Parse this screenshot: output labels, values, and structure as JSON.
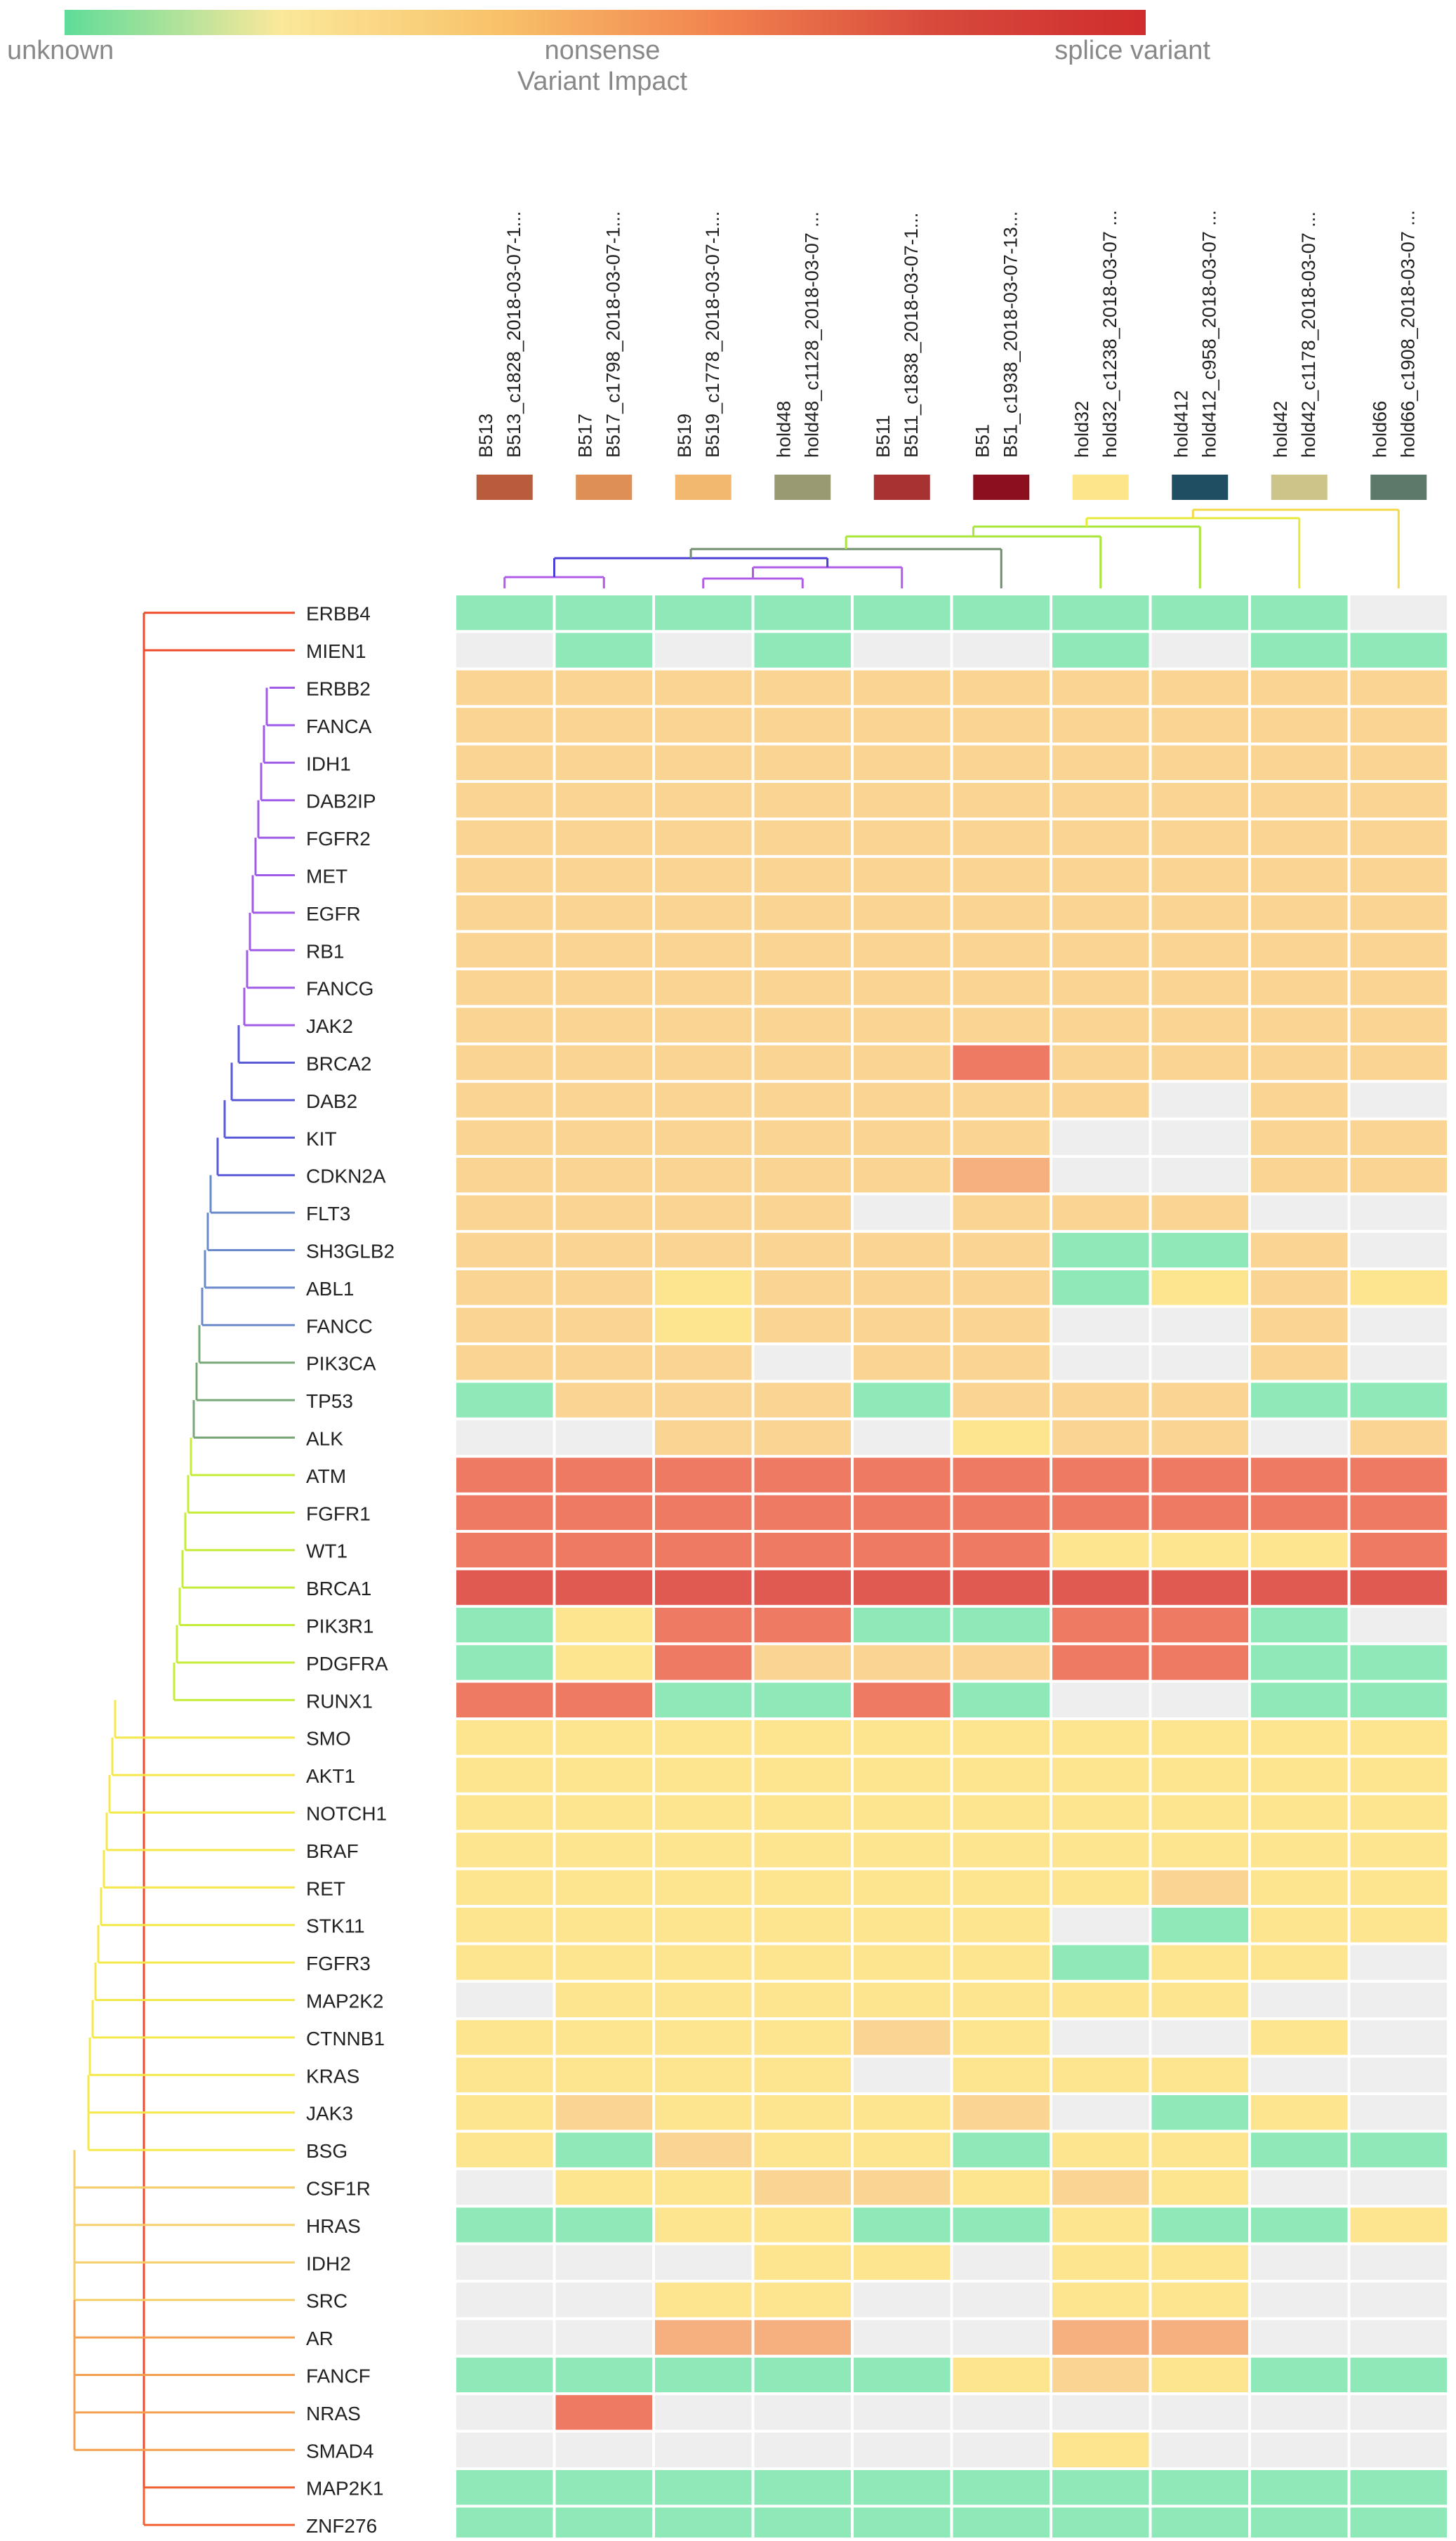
{
  "legend": {
    "title": "Variant Impact",
    "label_left": "unknown",
    "label_mid": "nonsense",
    "label_right": "splice variant",
    "gradient_colors": [
      "#5fdc9a",
      "#fbe89a",
      "#f8c26a",
      "#f2844f",
      "#d84a3c",
      "#cf2d2d"
    ]
  },
  "chart_data": {
    "type": "heatmap",
    "title": "Variant Impact",
    "color_scale": {
      "unknown": "#8fe8b8",
      "low": "#fde48e",
      "moderate": "#fad493",
      "mid-high": "#f6b080",
      "high": "#ee7a64",
      "splice variant": "#e05a52",
      "none": "#eeeeee"
    },
    "samples": [
      {
        "lines": [
          "B513",
          "B513_c1828_2018-03-07-1..."
        ],
        "color": "#b85c3c"
      },
      {
        "lines": [
          "B517",
          "B517_c1798_2018-03-07-1..."
        ],
        "color": "#dd8f55"
      },
      {
        "lines": [
          "B519",
          "B519_c1778_2018-03-07-1..."
        ],
        "color": "#f3b870"
      },
      {
        "lines": [
          "hold48",
          "hold48_c1128_2018-03-07 ..."
        ],
        "color": "#9a9a72"
      },
      {
        "lines": [
          "B511",
          "B511_c1838_2018-03-07-1..."
        ],
        "color": "#a83232"
      },
      {
        "lines": [
          "B51",
          "B51_c1938_2018-03-07-13..."
        ],
        "color": "#8b0f1e"
      },
      {
        "lines": [
          "hold32",
          "hold32_c1238_2018-03-07 ..."
        ],
        "color": "#fde68a"
      },
      {
        "lines": [
          "hold412",
          "hold412_c958_2018-03-07 ..."
        ],
        "color": "#1f4e63"
      },
      {
        "lines": [
          "hold42",
          "hold42_c1178_2018-03-07 ..."
        ],
        "color": "#cdc48a"
      },
      {
        "lines": [
          "hold66",
          "hold66_c1908_2018-03-07 ..."
        ],
        "color": "#5c7a6a"
      }
    ],
    "genes": [
      "ERBB4",
      "MIEN1",
      "ERBB2",
      "FANCA",
      "IDH1",
      "DAB2IP",
      "FGFR2",
      "MET",
      "EGFR",
      "RB1",
      "FANCG",
      "JAK2",
      "BRCA2",
      "DAB2",
      "KIT",
      "CDKN2A",
      "FLT3",
      "SH3GLB2",
      "ABL1",
      "FANCC",
      "PIK3CA",
      "TP53",
      "ALK",
      "ATM",
      "FGFR1",
      "WT1",
      "BRCA1",
      "PIK3R1",
      "PDGFRA",
      "RUNX1",
      "SMO",
      "AKT1",
      "NOTCH1",
      "BRAF",
      "RET",
      "STK11",
      "FGFR3",
      "MAP2K2",
      "CTNNB1",
      "KRAS",
      "JAK3",
      "BSG",
      "CSF1R",
      "HRAS",
      "IDH2",
      "SRC",
      "AR",
      "FANCF",
      "NRAS",
      "SMAD4",
      "MAP2K1",
      "ZNF276"
    ],
    "matrix": [
      [
        "U",
        "U",
        "U",
        "U",
        "U",
        "U",
        "U",
        "U",
        "U",
        "N"
      ],
      [
        "N",
        "U",
        "N",
        "U",
        "N",
        "N",
        "U",
        "N",
        "U",
        "U"
      ],
      [
        "M",
        "M",
        "M",
        "M",
        "M",
        "M",
        "M",
        "M",
        "M",
        "M"
      ],
      [
        "M",
        "M",
        "M",
        "M",
        "M",
        "M",
        "M",
        "M",
        "M",
        "M"
      ],
      [
        "M",
        "M",
        "M",
        "M",
        "M",
        "M",
        "M",
        "M",
        "M",
        "M"
      ],
      [
        "M",
        "M",
        "M",
        "M",
        "M",
        "M",
        "M",
        "M",
        "M",
        "M"
      ],
      [
        "M",
        "M",
        "M",
        "M",
        "M",
        "M",
        "M",
        "M",
        "M",
        "M"
      ],
      [
        "M",
        "M",
        "M",
        "M",
        "M",
        "M",
        "M",
        "M",
        "M",
        "M"
      ],
      [
        "M",
        "M",
        "M",
        "M",
        "M",
        "M",
        "M",
        "M",
        "M",
        "M"
      ],
      [
        "M",
        "M",
        "M",
        "M",
        "M",
        "M",
        "M",
        "M",
        "M",
        "M"
      ],
      [
        "M",
        "M",
        "M",
        "M",
        "M",
        "M",
        "M",
        "M",
        "M",
        "M"
      ],
      [
        "M",
        "M",
        "M",
        "M",
        "M",
        "M",
        "M",
        "M",
        "M",
        "M"
      ],
      [
        "M",
        "M",
        "M",
        "M",
        "M",
        "H",
        "M",
        "M",
        "M",
        "M"
      ],
      [
        "M",
        "M",
        "M",
        "M",
        "M",
        "M",
        "M",
        "N",
        "M",
        "N"
      ],
      [
        "M",
        "M",
        "M",
        "M",
        "M",
        "M",
        "N",
        "N",
        "M",
        "M"
      ],
      [
        "M",
        "M",
        "M",
        "M",
        "M",
        "O",
        "N",
        "N",
        "M",
        "M"
      ],
      [
        "M",
        "M",
        "M",
        "M",
        "N",
        "M",
        "M",
        "M",
        "N",
        "N"
      ],
      [
        "M",
        "M",
        "M",
        "M",
        "M",
        "M",
        "U",
        "U",
        "M",
        "N"
      ],
      [
        "M",
        "M",
        "L",
        "M",
        "M",
        "M",
        "U",
        "L",
        "M",
        "L"
      ],
      [
        "M",
        "M",
        "L",
        "M",
        "M",
        "M",
        "N",
        "N",
        "M",
        "N"
      ],
      [
        "M",
        "M",
        "M",
        "N",
        "M",
        "M",
        "N",
        "N",
        "M",
        "N"
      ],
      [
        "U",
        "M",
        "M",
        "M",
        "U",
        "M",
        "M",
        "M",
        "U",
        "U"
      ],
      [
        "N",
        "N",
        "M",
        "M",
        "N",
        "L",
        "M",
        "M",
        "N",
        "M"
      ],
      [
        "H",
        "H",
        "H",
        "H",
        "H",
        "H",
        "H",
        "H",
        "H",
        "H"
      ],
      [
        "H",
        "H",
        "H",
        "H",
        "H",
        "H",
        "H",
        "H",
        "H",
        "H"
      ],
      [
        "H",
        "H",
        "H",
        "H",
        "H",
        "H",
        "L",
        "L",
        "L",
        "H"
      ],
      [
        "S",
        "S",
        "S",
        "S",
        "S",
        "S",
        "S",
        "S",
        "S",
        "S"
      ],
      [
        "U",
        "L",
        "H",
        "H",
        "U",
        "U",
        "H",
        "H",
        "U",
        "N"
      ],
      [
        "U",
        "L",
        "H",
        "M",
        "M",
        "M",
        "H",
        "H",
        "U",
        "U"
      ],
      [
        "H",
        "H",
        "U",
        "U",
        "H",
        "U",
        "N",
        "N",
        "U",
        "U"
      ],
      [
        "L",
        "L",
        "L",
        "L",
        "L",
        "L",
        "L",
        "L",
        "L",
        "L"
      ],
      [
        "L",
        "L",
        "L",
        "L",
        "L",
        "L",
        "L",
        "L",
        "L",
        "L"
      ],
      [
        "L",
        "L",
        "L",
        "L",
        "L",
        "L",
        "L",
        "L",
        "L",
        "L"
      ],
      [
        "L",
        "L",
        "L",
        "L",
        "L",
        "L",
        "L",
        "L",
        "L",
        "L"
      ],
      [
        "L",
        "L",
        "L",
        "L",
        "L",
        "L",
        "L",
        "M",
        "L",
        "L"
      ],
      [
        "L",
        "L",
        "L",
        "L",
        "L",
        "L",
        "N",
        "U",
        "L",
        "L"
      ],
      [
        "L",
        "L",
        "L",
        "L",
        "L",
        "L",
        "U",
        "L",
        "L",
        "N"
      ],
      [
        "N",
        "L",
        "L",
        "L",
        "L",
        "L",
        "L",
        "L",
        "N",
        "N"
      ],
      [
        "L",
        "L",
        "L",
        "L",
        "M",
        "L",
        "N",
        "N",
        "L",
        "N"
      ],
      [
        "L",
        "L",
        "L",
        "L",
        "N",
        "L",
        "L",
        "L",
        "N",
        "N"
      ],
      [
        "L",
        "M",
        "L",
        "L",
        "L",
        "M",
        "N",
        "U",
        "L",
        "N"
      ],
      [
        "L",
        "U",
        "M",
        "L",
        "L",
        "U",
        "L",
        "L",
        "U",
        "U"
      ],
      [
        "N",
        "L",
        "L",
        "M",
        "M",
        "L",
        "M",
        "L",
        "N",
        "N"
      ],
      [
        "U",
        "U",
        "L",
        "L",
        "U",
        "U",
        "L",
        "U",
        "U",
        "L"
      ],
      [
        "N",
        "N",
        "N",
        "L",
        "L",
        "N",
        "L",
        "L",
        "N",
        "N"
      ],
      [
        "N",
        "N",
        "L",
        "L",
        "N",
        "N",
        "L",
        "L",
        "N",
        "N"
      ],
      [
        "N",
        "N",
        "O",
        "O",
        "N",
        "N",
        "O",
        "O",
        "N",
        "N"
      ],
      [
        "U",
        "U",
        "U",
        "U",
        "U",
        "L",
        "M",
        "L",
        "U",
        "U"
      ],
      [
        "N",
        "H",
        "N",
        "N",
        "N",
        "N",
        "N",
        "N",
        "N",
        "N"
      ],
      [
        "N",
        "N",
        "N",
        "N",
        "N",
        "N",
        "L",
        "N",
        "N",
        "N"
      ],
      [
        "U",
        "U",
        "U",
        "U",
        "U",
        "U",
        "U",
        "U",
        "U",
        "U"
      ],
      [
        "U",
        "U",
        "U",
        "U",
        "U",
        "U",
        "U",
        "U",
        "U",
        "U"
      ]
    ],
    "gene_tree_colors": [
      "#ee4b2b",
      "#a05ce8",
      "#5a5ad8",
      "#6a8acb",
      "#78a878",
      "#9ccc65",
      "#c6ec3a",
      "#f4e84a",
      "#f4cf6a",
      "#f5a050",
      "#f26030"
    ],
    "sample_tree_colors": [
      "#b15ce8",
      "#4b3fd6",
      "#6f8f6f",
      "#a8e63a",
      "#e8ea3a",
      "#f4d94a"
    ]
  }
}
